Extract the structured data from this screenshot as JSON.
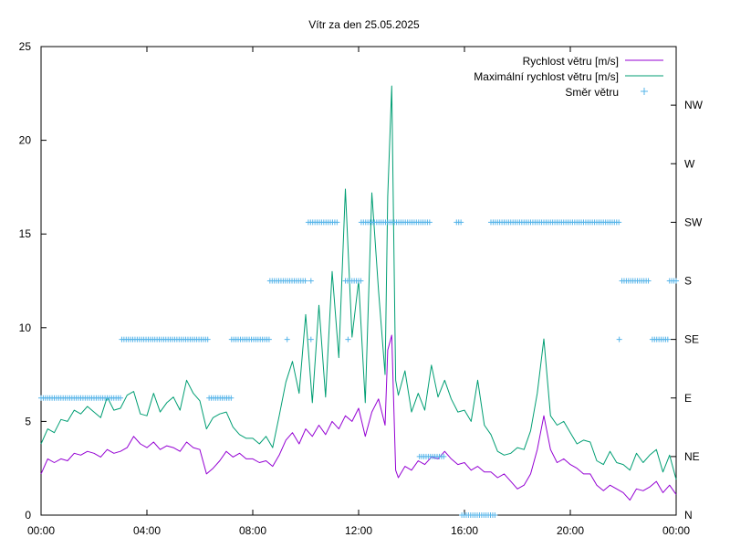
{
  "chart_data": {
    "type": "line",
    "title": "Vítr za den 25.05.2025",
    "xlim": [
      0,
      24
    ],
    "ylim": [
      0,
      25
    ],
    "x_ticks": [
      {
        "value": 0,
        "label": "00:00"
      },
      {
        "value": 4,
        "label": "04:00"
      },
      {
        "value": 8,
        "label": "08:00"
      },
      {
        "value": 12,
        "label": "12:00"
      },
      {
        "value": 16,
        "label": "16:00"
      },
      {
        "value": 20,
        "label": "20:00"
      },
      {
        "value": 24,
        "label": "00:00"
      }
    ],
    "y_ticks": [
      0,
      5,
      10,
      15,
      20,
      25
    ],
    "y2_ticks": [
      {
        "value": 0,
        "label": "N"
      },
      {
        "value": 1,
        "label": "NE"
      },
      {
        "value": 2,
        "label": "E"
      },
      {
        "value": 3,
        "label": "SE"
      },
      {
        "value": 4,
        "label": "S"
      },
      {
        "value": 5,
        "label": "SW"
      },
      {
        "value": 6,
        "label": "W"
      },
      {
        "value": 7,
        "label": "NW"
      }
    ],
    "y2lim": [
      0,
      8
    ],
    "legend_placement": "top-right",
    "series": [
      {
        "name": "Rychlost větru [m/s]",
        "color": "#9400d3",
        "x": [
          0.0,
          0.25,
          0.5,
          0.75,
          1.0,
          1.25,
          1.5,
          1.75,
          2.0,
          2.25,
          2.5,
          2.75,
          3.0,
          3.25,
          3.5,
          3.75,
          4.0,
          4.25,
          4.5,
          4.75,
          5.0,
          5.25,
          5.5,
          5.75,
          6.0,
          6.25,
          6.5,
          6.75,
          7.0,
          7.25,
          7.5,
          7.75,
          8.0,
          8.25,
          8.5,
          8.75,
          9.0,
          9.25,
          9.5,
          9.75,
          10.0,
          10.25,
          10.5,
          10.75,
          11.0,
          11.25,
          11.5,
          11.75,
          12.0,
          12.25,
          12.5,
          12.75,
          13.0,
          13.1,
          13.25,
          13.4,
          13.5,
          13.75,
          14.0,
          14.25,
          14.5,
          14.75,
          15.0,
          15.25,
          15.5,
          15.75,
          16.0,
          16.25,
          16.5,
          16.75,
          17.0,
          17.25,
          17.5,
          17.75,
          18.0,
          18.25,
          18.5,
          18.75,
          19.0,
          19.25,
          19.5,
          19.75,
          20.0,
          20.25,
          20.5,
          20.75,
          21.0,
          21.25,
          21.5,
          21.75,
          22.0,
          22.25,
          22.5,
          22.75,
          23.0,
          23.25,
          23.5,
          23.75,
          24.0
        ],
        "values": [
          2.2,
          3.0,
          2.8,
          3.0,
          2.9,
          3.3,
          3.2,
          3.4,
          3.3,
          3.1,
          3.5,
          3.3,
          3.4,
          3.6,
          4.2,
          3.8,
          3.6,
          3.9,
          3.5,
          3.7,
          3.6,
          3.4,
          3.9,
          3.6,
          3.5,
          2.2,
          2.5,
          2.9,
          3.4,
          3.1,
          3.3,
          3.0,
          3.0,
          2.8,
          2.9,
          2.6,
          3.2,
          4.0,
          4.4,
          3.8,
          4.6,
          4.2,
          4.8,
          4.3,
          5.0,
          4.6,
          5.3,
          5.0,
          5.7,
          4.2,
          5.5,
          6.2,
          4.8,
          8.8,
          9.6,
          2.4,
          2.0,
          2.6,
          2.4,
          2.9,
          2.7,
          3.1,
          3.0,
          3.4,
          3.0,
          2.7,
          2.8,
          2.4,
          2.6,
          2.3,
          2.3,
          2.0,
          2.2,
          1.8,
          1.4,
          1.6,
          2.2,
          3.5,
          5.3,
          3.5,
          2.8,
          3.0,
          2.7,
          2.5,
          2.2,
          2.2,
          1.6,
          1.3,
          1.6,
          1.4,
          1.2,
          0.8,
          1.4,
          1.3,
          1.5,
          1.8,
          1.2,
          1.6,
          1.1
        ]
      },
      {
        "name": "Maximální rychlost větru [m/s]",
        "color": "#009e73",
        "x": [
          0.0,
          0.25,
          0.5,
          0.75,
          1.0,
          1.25,
          1.5,
          1.75,
          2.0,
          2.25,
          2.5,
          2.75,
          3.0,
          3.25,
          3.5,
          3.75,
          4.0,
          4.25,
          4.5,
          4.75,
          5.0,
          5.25,
          5.5,
          5.75,
          6.0,
          6.25,
          6.5,
          6.75,
          7.0,
          7.25,
          7.5,
          7.75,
          8.0,
          8.25,
          8.5,
          8.75,
          9.0,
          9.25,
          9.5,
          9.75,
          10.0,
          10.25,
          10.5,
          10.75,
          11.0,
          11.25,
          11.5,
          11.75,
          12.0,
          12.25,
          12.5,
          12.75,
          13.0,
          13.1,
          13.25,
          13.4,
          13.5,
          13.75,
          14.0,
          14.25,
          14.5,
          14.75,
          15.0,
          15.25,
          15.5,
          15.75,
          16.0,
          16.25,
          16.5,
          16.75,
          17.0,
          17.25,
          17.5,
          17.75,
          18.0,
          18.25,
          18.5,
          18.75,
          19.0,
          19.25,
          19.5,
          19.75,
          20.0,
          20.25,
          20.5,
          20.75,
          21.0,
          21.25,
          21.5,
          21.75,
          22.0,
          22.25,
          22.5,
          22.75,
          23.0,
          23.25,
          23.5,
          23.75,
          24.0
        ],
        "values": [
          3.8,
          4.6,
          4.4,
          5.1,
          5.0,
          5.6,
          5.4,
          5.8,
          5.5,
          5.2,
          6.3,
          5.6,
          5.7,
          6.4,
          6.6,
          5.4,
          5.3,
          6.5,
          5.5,
          6.0,
          6.3,
          5.6,
          7.2,
          6.5,
          6.1,
          4.6,
          5.2,
          5.4,
          5.5,
          4.7,
          4.3,
          4.1,
          4.1,
          3.8,
          4.2,
          3.6,
          5.3,
          7.1,
          8.2,
          6.5,
          10.7,
          6.0,
          11.2,
          6.3,
          13.0,
          8.4,
          17.4,
          9.5,
          12.5,
          6.0,
          17.2,
          12.0,
          7.5,
          17.0,
          22.9,
          7.2,
          6.4,
          7.7,
          5.5,
          6.5,
          5.6,
          8.0,
          6.3,
          7.2,
          6.2,
          5.5,
          5.6,
          5.0,
          7.2,
          4.8,
          4.3,
          3.4,
          3.2,
          3.3,
          3.6,
          3.5,
          4.5,
          6.5,
          9.4,
          5.3,
          4.8,
          5.0,
          4.4,
          3.8,
          4.0,
          3.9,
          2.9,
          2.7,
          3.4,
          2.8,
          2.7,
          2.4,
          3.3,
          2.8,
          3.2,
          3.5,
          2.3,
          3.2,
          1.9
        ]
      },
      {
        "name": "Směr větru",
        "color": "#56b4e9",
        "segments": [
          {
            "x_from": 0.0,
            "x_to": 3.05,
            "value": 2
          },
          {
            "x_from": 3.05,
            "x_to": 6.35,
            "value": 3
          },
          {
            "x_from": 6.35,
            "x_to": 7.2,
            "value": 2
          },
          {
            "x_from": 7.2,
            "x_to": 8.65,
            "value": 3
          },
          {
            "x_from": 8.65,
            "x_to": 10.0,
            "value": 4
          },
          {
            "x_from": 10.1,
            "x_to": 11.2,
            "value": 5
          },
          {
            "x_from": 11.5,
            "x_to": 12.1,
            "value": 4
          },
          {
            "x_from": 12.1,
            "x_to": 14.7,
            "value": 5
          },
          {
            "x_from": 14.3,
            "x_to": 15.25,
            "value": 1
          },
          {
            "x_from": 15.7,
            "x_to": 15.9,
            "value": 5
          },
          {
            "x_from": 15.9,
            "x_to": 17.2,
            "value": 0
          },
          {
            "x_from": 17.0,
            "x_to": 21.85,
            "value": 5
          },
          {
            "x_from": 21.95,
            "x_to": 23.0,
            "value": 4
          },
          {
            "x_from": 23.1,
            "x_to": 23.75,
            "value": 3
          },
          {
            "x_from": 23.75,
            "x_to": 24.0,
            "value": 4
          }
        ],
        "singles": [
          {
            "x": 9.3,
            "value": 3
          },
          {
            "x": 10.2,
            "value": 3
          },
          {
            "x": 10.2,
            "value": 4
          },
          {
            "x": 11.6,
            "value": 3
          },
          {
            "x": 21.85,
            "value": 3
          }
        ]
      }
    ]
  }
}
